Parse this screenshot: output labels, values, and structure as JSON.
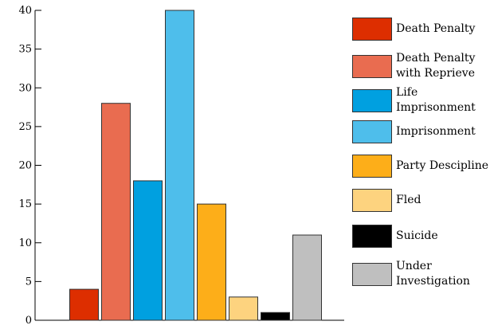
{
  "chart_data": {
    "type": "bar",
    "categories": [
      "Death Penalty",
      "Death Penalty\nwith Reprieve",
      "Life\nImprisonment",
      "Imprisonment",
      "Party Descipline",
      "Fled",
      "Suicide",
      "Under\nInvestigation"
    ],
    "values": [
      4,
      28,
      18,
      40,
      15,
      3,
      1,
      11
    ],
    "colors": [
      "#dd2e00",
      "#e96c50",
      "#00a0e0",
      "#4ebeeb",
      "#fdae19",
      "#fdd37f",
      "#000000",
      "#bfbfbf"
    ],
    "ylim": [
      0,
      40
    ],
    "yticks": [
      "0",
      "5",
      "10",
      "15",
      "20",
      "25",
      "30",
      "35",
      "40"
    ],
    "title": "",
    "xlabel": "",
    "ylabel": "",
    "grid": false,
    "legend_position": "right"
  }
}
